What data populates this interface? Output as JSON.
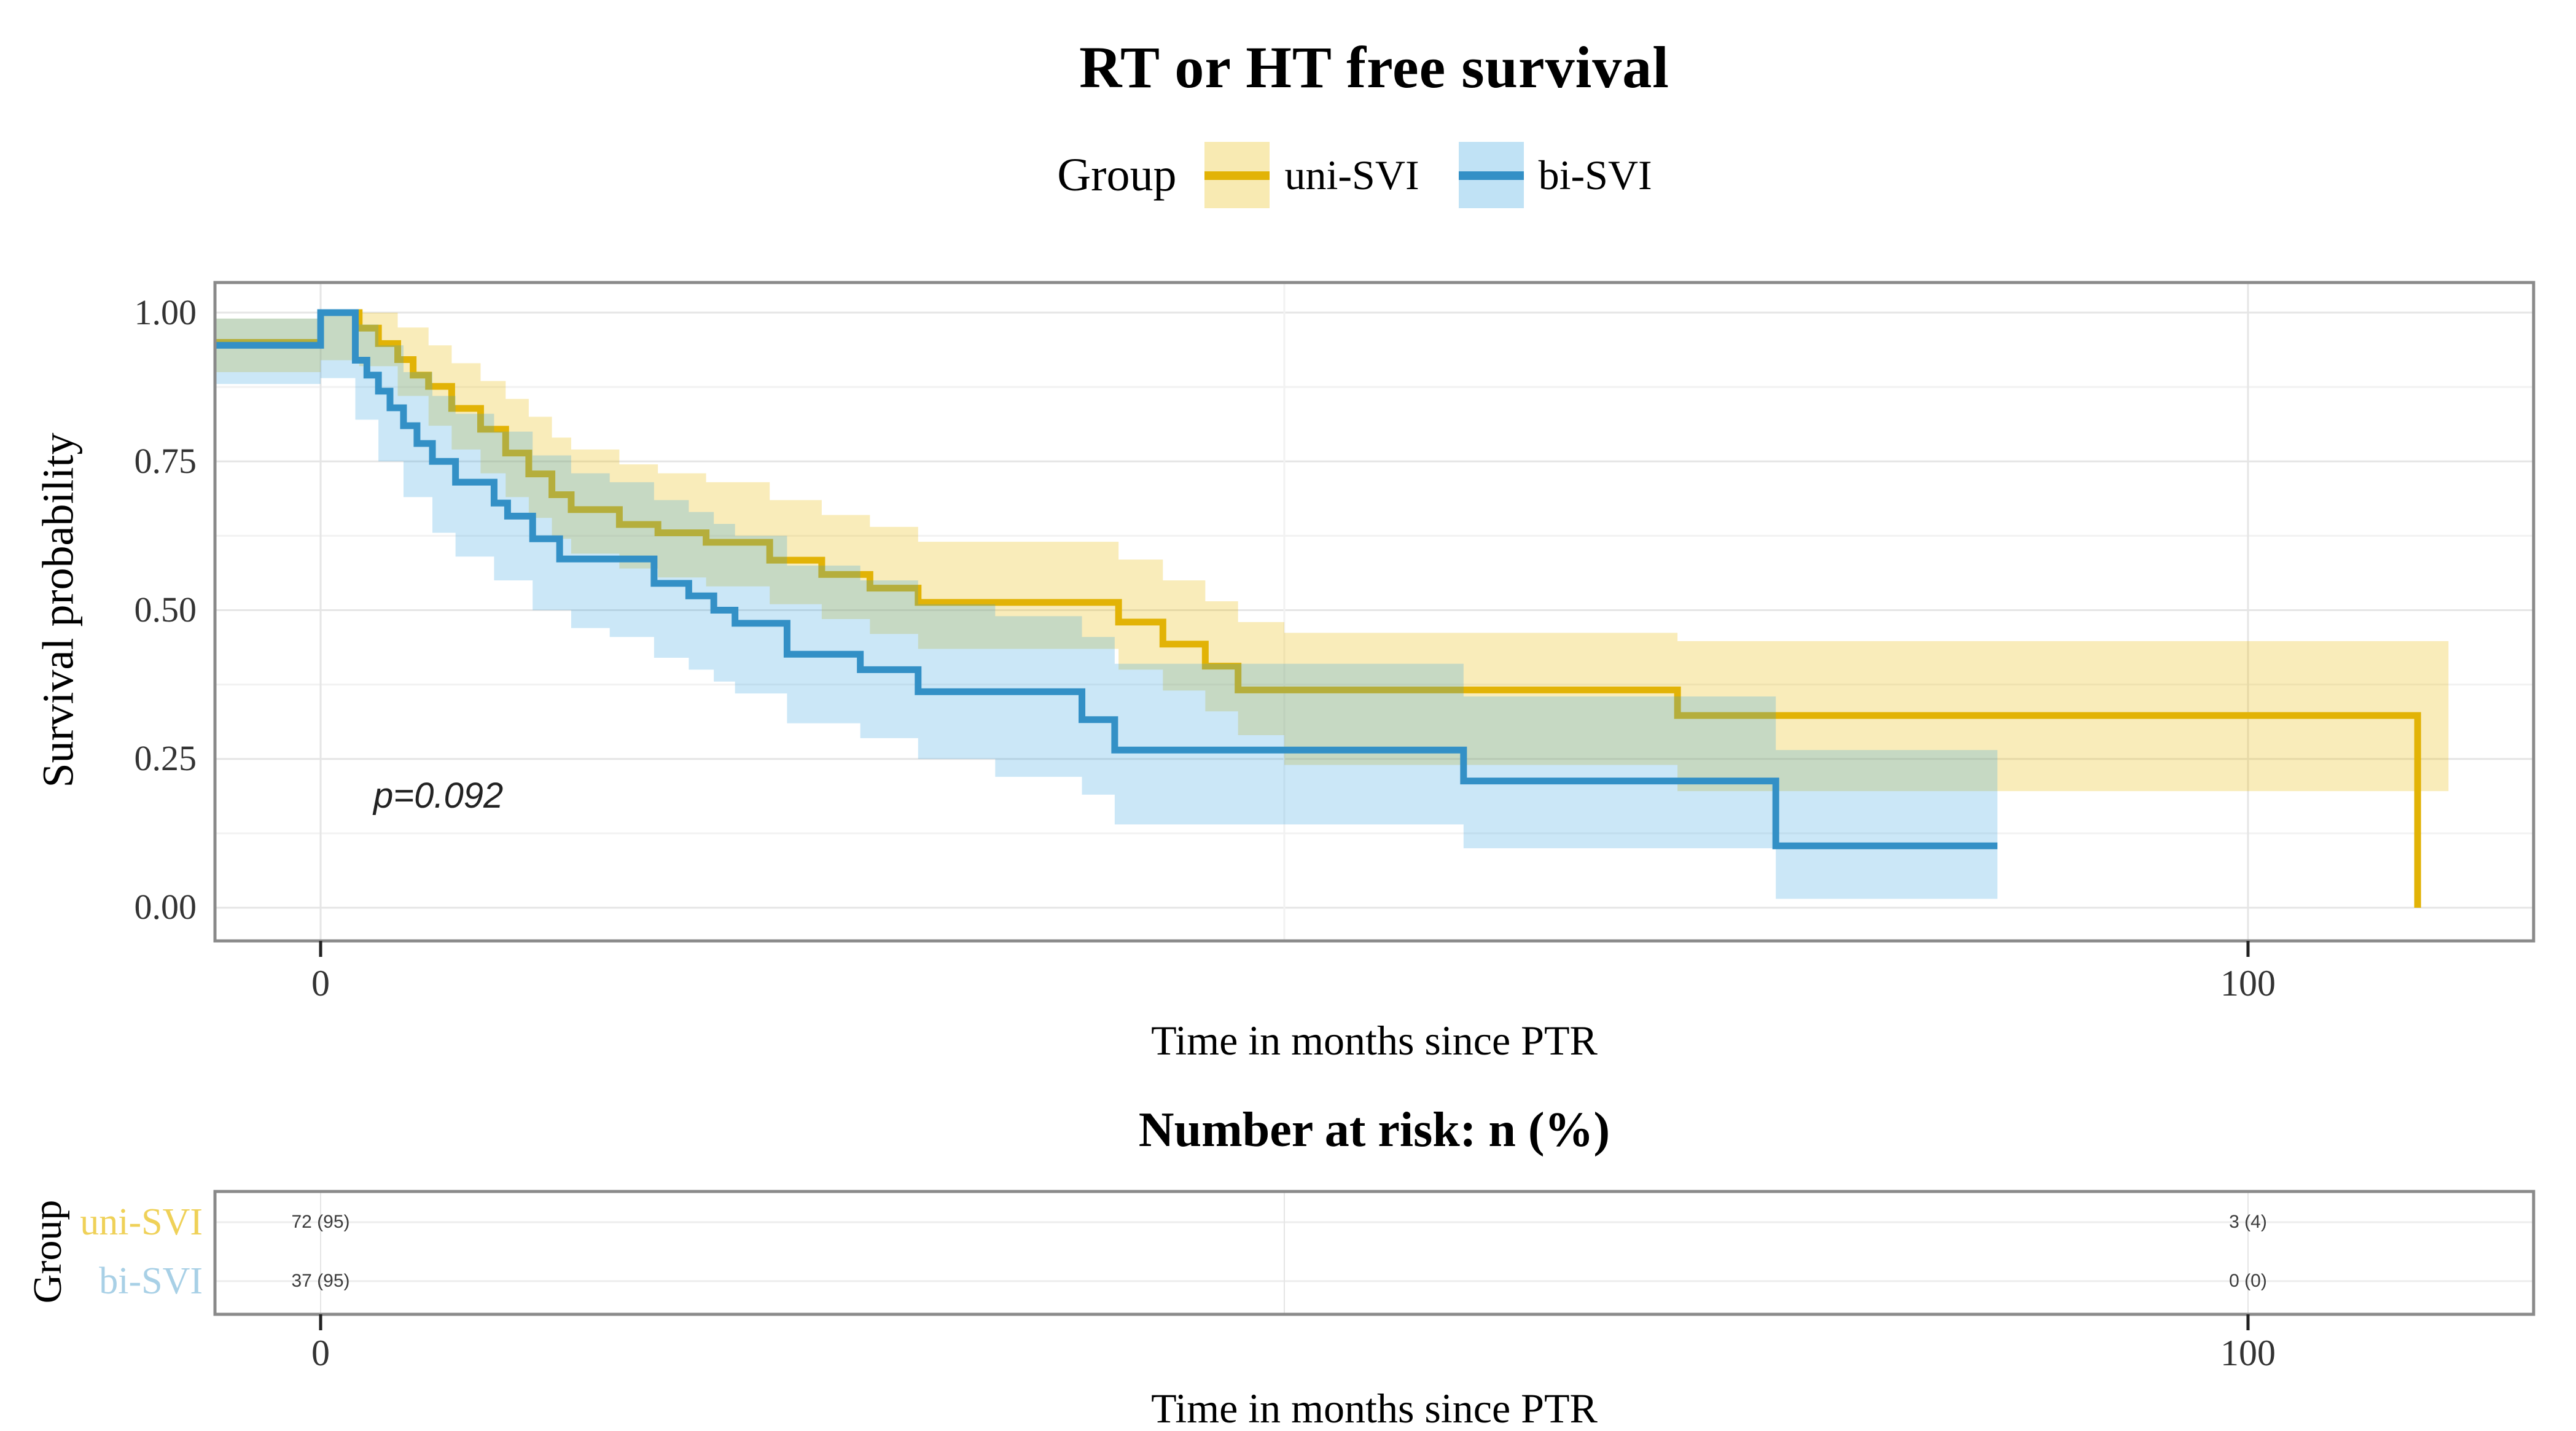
{
  "figure": {
    "title": "RT or HT free survival",
    "colors": {
      "uni": "#E2B306",
      "bi": "#3390C6",
      "uni_ribbon": "#E7B800",
      "bi_ribbon": "#2E9FDF",
      "uni_label": "#EFD158",
      "bi_label": "#A8D0E6",
      "panel_border": "#8a8a8a",
      "grid_major": "#e5e5e5",
      "grid_minor": "#f2f2f2",
      "tick": "#222222"
    }
  },
  "legend": {
    "title": "Group",
    "items": [
      {
        "key": "uni",
        "label": "uni-SVI"
      },
      {
        "key": "bi",
        "label": "bi-SVI"
      }
    ]
  },
  "main_plot": {
    "ylabel": "Survival probability",
    "xlabel": "Time in months since PTR",
    "pvalue": "p=0.092",
    "yticks": [
      "1.00",
      "0.75",
      "0.50",
      "0.25",
      "0.00"
    ],
    "xticks": [
      "0",
      "100"
    ]
  },
  "risk_table": {
    "title": "Number at risk: n (%)",
    "ylabel": "Group",
    "xlabel": "Time in months since PTR",
    "xticks": [
      "0",
      "100"
    ],
    "rows": [
      {
        "label": "uni-SVI",
        "values": [
          "72 (95)",
          "3 (4)"
        ]
      },
      {
        "label": "bi-SVI",
        "values": [
          "37 (95)",
          "0 (0)"
        ]
      }
    ]
  },
  "chart_data": {
    "type": "line",
    "subtype": "kaplan-meier-step",
    "title": "RT or HT free survival",
    "xlabel": "Time in months since PTR",
    "ylabel": "Survival probability",
    "pvalue": "p=0.092",
    "xlim": [
      -5.5,
      114.8
    ],
    "ylim": [
      0,
      1
    ],
    "x_major_ticks": [
      0,
      100
    ],
    "x_minor_ticks": [
      50
    ],
    "y_major_ticks": [
      1.0,
      0.75,
      0.5,
      0.25,
      0.0
    ],
    "y_minor_ticks": [
      0.875,
      0.625,
      0.375,
      0.125
    ],
    "grid": true,
    "legend_position": "top",
    "series": [
      {
        "name": "uni-SVI",
        "color_key": "uni",
        "steps": [
          [
            -6,
            0.95
          ],
          [
            0,
            1.0
          ],
          [
            2,
            0.974
          ],
          [
            3,
            0.948
          ],
          [
            4,
            0.921
          ],
          [
            4.8,
            0.895
          ],
          [
            5.6,
            0.876
          ],
          [
            6.8,
            0.839
          ],
          [
            8.3,
            0.804
          ],
          [
            9.6,
            0.764
          ],
          [
            10.8,
            0.729
          ],
          [
            12,
            0.694
          ],
          [
            13,
            0.669
          ],
          [
            15.5,
            0.644
          ],
          [
            17.5,
            0.63
          ],
          [
            20,
            0.614
          ],
          [
            23.3,
            0.584
          ],
          [
            26,
            0.56
          ],
          [
            28.5,
            0.537
          ],
          [
            31,
            0.513
          ],
          [
            41.4,
            0.48
          ],
          [
            43.7,
            0.443
          ],
          [
            45.9,
            0.406
          ],
          [
            47.6,
            0.366
          ],
          [
            70.4,
            0.323
          ],
          [
            108.8,
            0.0
          ]
        ],
        "ribbon": [
          [
            -6,
            0.9,
            0.99
          ],
          [
            0,
            0.92,
            1.0
          ],
          [
            2,
            0.91,
            1.0
          ],
          [
            4,
            0.86,
            0.975
          ],
          [
            5.6,
            0.81,
            0.945
          ],
          [
            6.8,
            0.77,
            0.915
          ],
          [
            8.3,
            0.73,
            0.885
          ],
          [
            9.6,
            0.69,
            0.855
          ],
          [
            10.8,
            0.655,
            0.825
          ],
          [
            12,
            0.62,
            0.79
          ],
          [
            13,
            0.595,
            0.77
          ],
          [
            15.5,
            0.57,
            0.745
          ],
          [
            17.5,
            0.555,
            0.73
          ],
          [
            20,
            0.54,
            0.715
          ],
          [
            23.3,
            0.51,
            0.685
          ],
          [
            26,
            0.485,
            0.66
          ],
          [
            28.5,
            0.46,
            0.64
          ],
          [
            31,
            0.435,
            0.615
          ],
          [
            41.4,
            0.4,
            0.585
          ],
          [
            43.7,
            0.365,
            0.55
          ],
          [
            45.9,
            0.33,
            0.515
          ],
          [
            47.6,
            0.29,
            0.48
          ],
          [
            50,
            0.24,
            0.462
          ],
          [
            70.4,
            0.196,
            0.448
          ],
          [
            110.4,
            0.196,
            0.448
          ]
        ]
      },
      {
        "name": "bi-SVI",
        "color_key": "bi",
        "steps": [
          [
            -6,
            0.945
          ],
          [
            0,
            1.0
          ],
          [
            1.8,
            0.92
          ],
          [
            2.4,
            0.895
          ],
          [
            3,
            0.868
          ],
          [
            3.6,
            0.84
          ],
          [
            4.3,
            0.81
          ],
          [
            5,
            0.78
          ],
          [
            5.8,
            0.75
          ],
          [
            7,
            0.715
          ],
          [
            9,
            0.68
          ],
          [
            9.7,
            0.658
          ],
          [
            11,
            0.62
          ],
          [
            12.4,
            0.586
          ],
          [
            17.3,
            0.545
          ],
          [
            19.1,
            0.524
          ],
          [
            20.4,
            0.5
          ],
          [
            21.5,
            0.478
          ],
          [
            24.2,
            0.426
          ],
          [
            28,
            0.4
          ],
          [
            31,
            0.363
          ],
          [
            39.5,
            0.316
          ],
          [
            41.2,
            0.265
          ],
          [
            59.3,
            0.213
          ],
          [
            75.5,
            0.104
          ],
          [
            87,
            0.104
          ]
        ],
        "ribbon": [
          [
            -6,
            0.88,
            0.99
          ],
          [
            0,
            0.89,
            1.0
          ],
          [
            1.8,
            0.82,
            0.98
          ],
          [
            3,
            0.75,
            0.945
          ],
          [
            4.3,
            0.69,
            0.9
          ],
          [
            5.8,
            0.63,
            0.86
          ],
          [
            7,
            0.59,
            0.83
          ],
          [
            9,
            0.55,
            0.8
          ],
          [
            11,
            0.5,
            0.76
          ],
          [
            13,
            0.47,
            0.73
          ],
          [
            15,
            0.455,
            0.715
          ],
          [
            17.3,
            0.42,
            0.685
          ],
          [
            19.1,
            0.4,
            0.665
          ],
          [
            20.4,
            0.38,
            0.645
          ],
          [
            21.5,
            0.36,
            0.625
          ],
          [
            24.2,
            0.31,
            0.575
          ],
          [
            28,
            0.285,
            0.55
          ],
          [
            31,
            0.25,
            0.51
          ],
          [
            35,
            0.22,
            0.49
          ],
          [
            39.5,
            0.19,
            0.455
          ],
          [
            41.2,
            0.14,
            0.41
          ],
          [
            59.3,
            0.1,
            0.355
          ],
          [
            75.5,
            0.015,
            0.265
          ],
          [
            87,
            0.015,
            0.265
          ]
        ]
      }
    ],
    "risk_table": {
      "title": "Number at risk: n (%)",
      "times": [
        0,
        100
      ],
      "rows": [
        {
          "name": "uni-SVI",
          "values_n_pct": [
            "72 (95)",
            "3 (4)"
          ]
        },
        {
          "name": "bi-SVI",
          "values_n_pct": [
            "37 (95)",
            "0 (0)"
          ]
        }
      ]
    }
  }
}
